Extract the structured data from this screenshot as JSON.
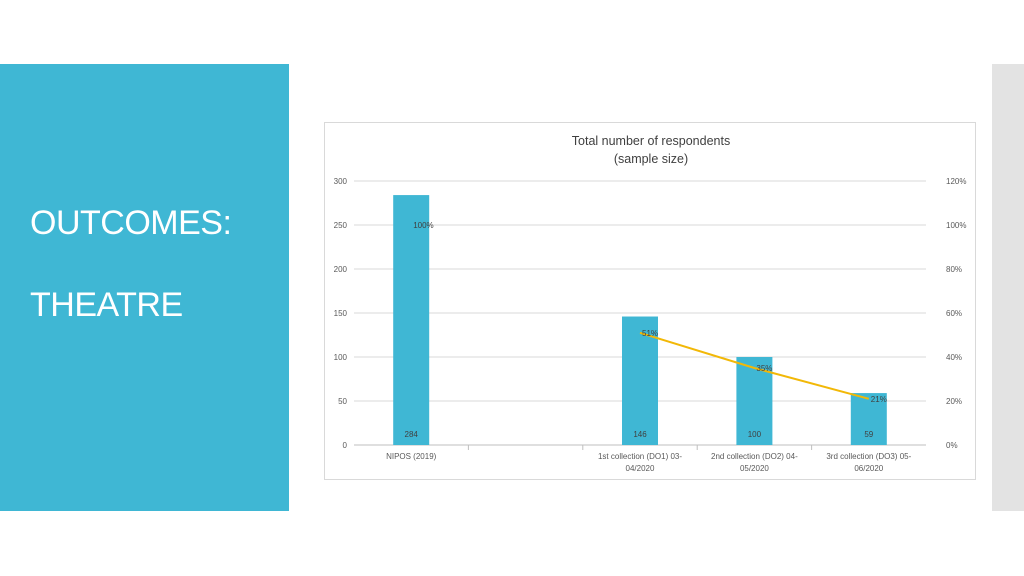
{
  "slide": {
    "title_line1": "OUTCOMES:",
    "title_line2": "THEATRE",
    "accent_color": "#3fb7d4"
  },
  "chart_data": {
    "type": "bar",
    "title_line1": "Total number of respondents",
    "title_line2": "(sample size)",
    "categories": [
      [
        "NIPOS (2019)"
      ],
      [
        ""
      ],
      [
        "1st collection (DO1) 03-",
        "04/2020"
      ],
      [
        "2nd collection (DO2) 04-",
        "05/2020"
      ],
      [
        "3rd collection (DO3) 05-",
        "06/2020"
      ]
    ],
    "series": [
      {
        "kind": "bar",
        "axis": "left",
        "color": "#3fb7d4",
        "values": [
          284,
          null,
          146,
          100,
          59
        ],
        "labels": [
          "284",
          "",
          "146",
          "100",
          "59"
        ]
      },
      {
        "kind": "line",
        "axis": "right",
        "color": "#f2b807",
        "values": [
          100,
          null,
          51,
          35,
          21
        ],
        "labels": [
          "100%",
          "",
          "51%",
          "35%",
          "21%"
        ]
      }
    ],
    "y_left": {
      "min": 0,
      "max": 300,
      "ticks": [
        "0",
        "50",
        "100",
        "150",
        "200",
        "250",
        "300"
      ]
    },
    "y_right": {
      "min": 0,
      "max": 120,
      "ticks": [
        "0%",
        "20%",
        "40%",
        "60%",
        "80%",
        "100%",
        "120%"
      ]
    },
    "grid": true
  }
}
